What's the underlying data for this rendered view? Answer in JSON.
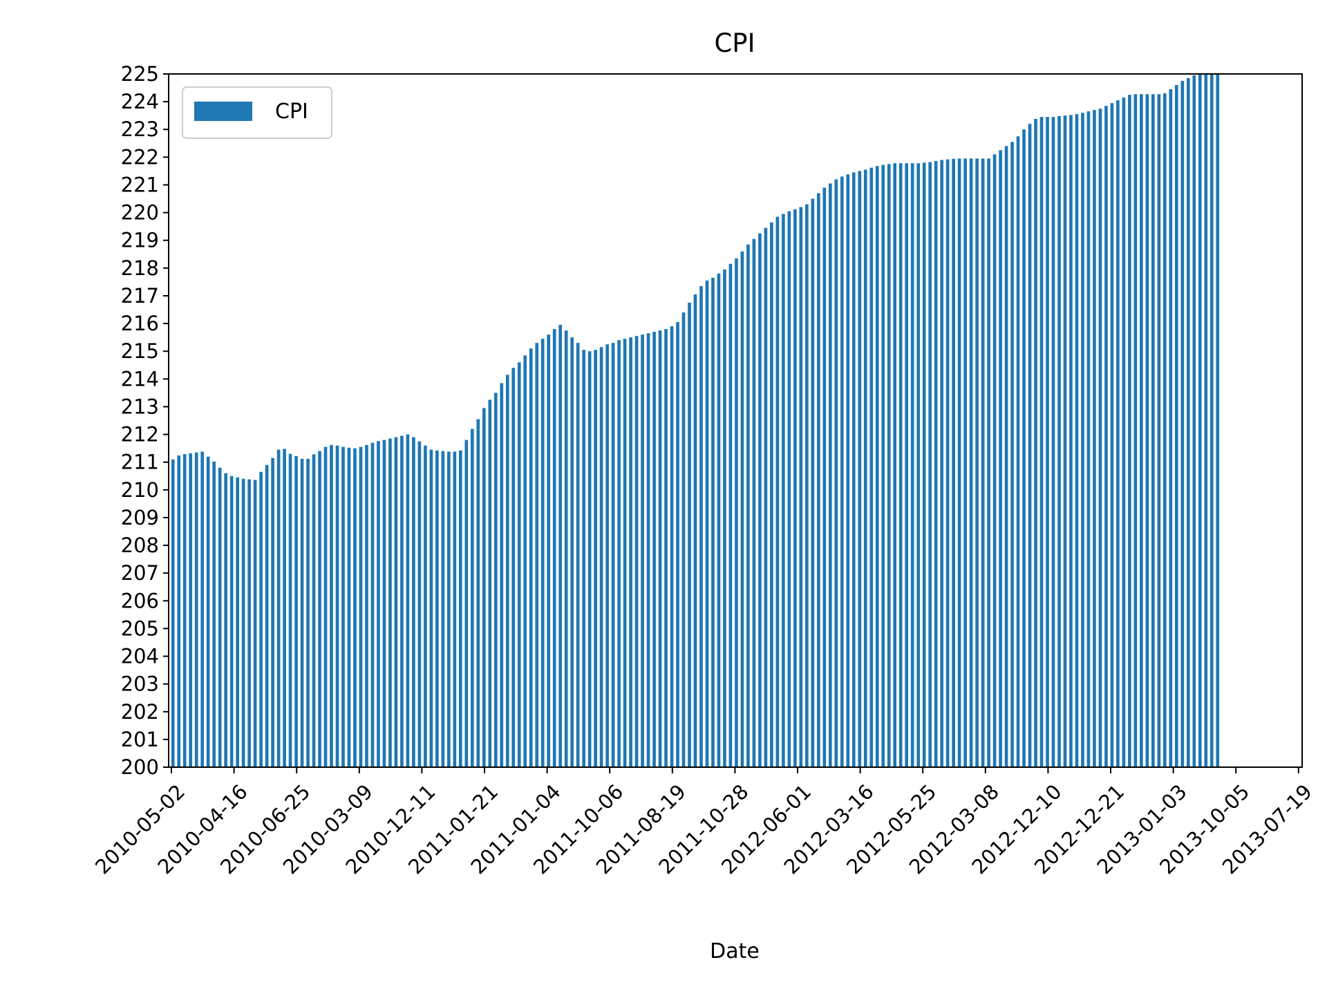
{
  "chart_data": {
    "type": "bar",
    "title": "CPI",
    "xlabel": "Date",
    "ylabel": "",
    "ylim": [
      200,
      225
    ],
    "yticks": [
      200,
      201,
      202,
      203,
      204,
      205,
      206,
      207,
      208,
      209,
      210,
      211,
      212,
      213,
      214,
      215,
      216,
      217,
      218,
      219,
      220,
      221,
      222,
      223,
      224,
      225
    ],
    "xtick_labels": [
      "2010-05-02",
      "2010-04-16",
      "2010-06-25",
      "2010-03-09",
      "2010-12-11",
      "2011-01-21",
      "2011-01-04",
      "2011-10-06",
      "2011-08-19",
      "2011-10-28",
      "2012-06-01",
      "2012-03-16",
      "2012-05-25",
      "2012-03-08",
      "2012-12-10",
      "2012-12-21",
      "2013-01-03",
      "2013-10-05",
      "2013-07-19"
    ],
    "legend": {
      "position": "top-left",
      "entries": [
        "CPI"
      ]
    },
    "grid": false,
    "color": "#1f77b4",
    "series": [
      {
        "name": "CPI",
        "values": [
          211.1,
          211.24,
          211.29,
          211.32,
          211.35,
          211.38,
          211.2,
          211.02,
          210.8,
          210.6,
          210.5,
          210.45,
          210.4,
          210.38,
          210.36,
          210.65,
          210.9,
          211.15,
          211.45,
          211.48,
          211.3,
          211.22,
          211.12,
          211.12,
          211.28,
          211.4,
          211.55,
          211.62,
          211.6,
          211.55,
          211.52,
          211.5,
          211.55,
          211.62,
          211.7,
          211.76,
          211.8,
          211.85,
          211.9,
          211.95,
          212.0,
          211.9,
          211.75,
          211.6,
          211.45,
          211.42,
          211.4,
          211.38,
          211.38,
          211.42,
          211.8,
          212.2,
          212.55,
          212.95,
          213.25,
          213.5,
          213.85,
          214.15,
          214.4,
          214.6,
          214.85,
          215.1,
          215.3,
          215.45,
          215.6,
          215.8,
          215.95,
          215.75,
          215.5,
          215.3,
          215.05,
          215.0,
          215.05,
          215.15,
          215.25,
          215.3,
          215.4,
          215.45,
          215.5,
          215.55,
          215.6,
          215.65,
          215.7,
          215.75,
          215.8,
          215.9,
          216.05,
          216.4,
          216.75,
          217.05,
          217.35,
          217.55,
          217.65,
          217.8,
          217.95,
          218.15,
          218.35,
          218.6,
          218.85,
          219.05,
          219.25,
          219.45,
          219.65,
          219.85,
          219.95,
          220.05,
          220.12,
          220.2,
          220.3,
          220.5,
          220.7,
          220.9,
          221.05,
          221.2,
          221.3,
          221.38,
          221.45,
          221.5,
          221.55,
          221.62,
          221.68,
          221.72,
          221.75,
          221.78,
          221.78,
          221.78,
          221.78,
          221.78,
          221.8,
          221.82,
          221.86,
          221.9,
          221.92,
          221.94,
          221.95,
          221.95,
          221.95,
          221.95,
          221.95,
          221.95,
          222.1,
          222.25,
          222.4,
          222.55,
          222.75,
          223.0,
          223.2,
          223.38,
          223.45,
          223.45,
          223.45,
          223.48,
          223.5,
          223.52,
          223.55,
          223.6,
          223.65,
          223.7,
          223.75,
          223.85,
          223.95,
          224.05,
          224.15,
          224.25,
          224.27,
          224.27,
          224.27,
          224.27,
          224.27,
          224.3,
          224.45,
          224.6,
          224.75,
          224.85,
          224.95,
          225.02,
          225.1,
          225.15,
          225.2
        ]
      }
    ]
  }
}
